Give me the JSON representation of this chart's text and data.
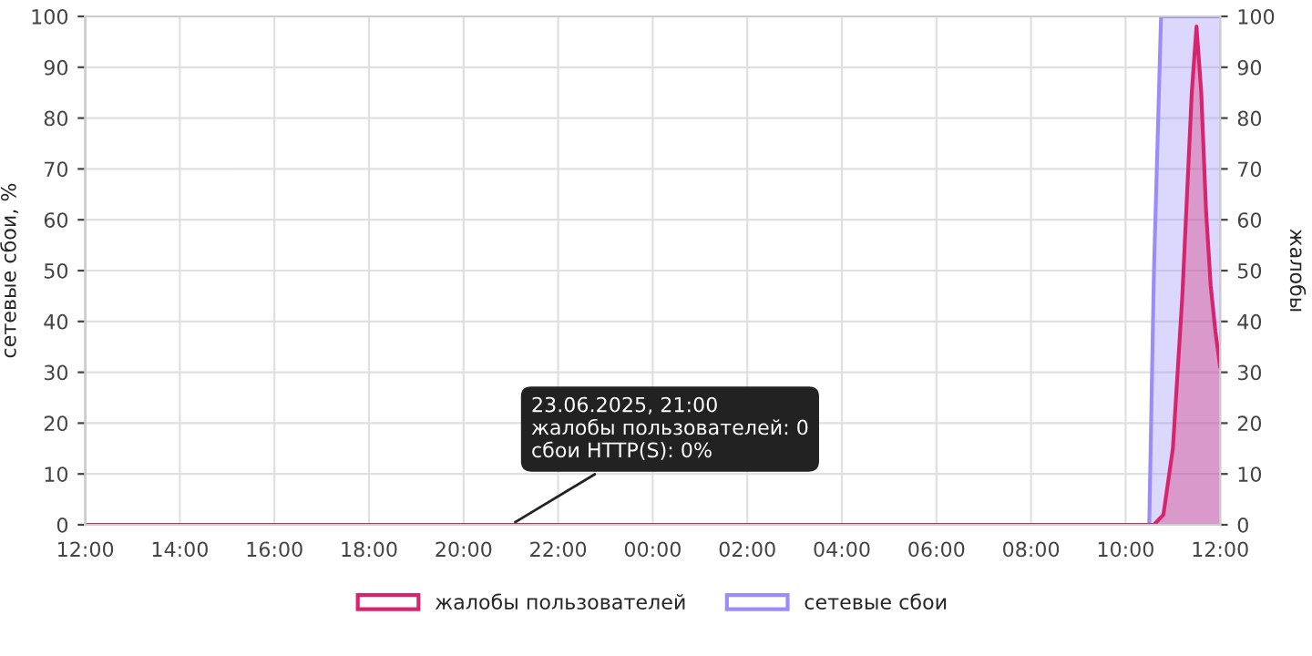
{
  "chart_data": {
    "type": "area",
    "ylabel": "сетевые сбои, %",
    "y2label": "жалобы",
    "xlim": [
      "2025-06-23T12:00",
      "2025-06-24T12:00"
    ],
    "xticks": [
      {
        "value": "2025-06-23T12:00",
        "label": "12:00"
      },
      {
        "value": "2025-06-23T14:00",
        "label": "14:00"
      },
      {
        "value": "2025-06-23T16:00",
        "label": "16:00"
      },
      {
        "value": "2025-06-23T18:00",
        "label": "18:00"
      },
      {
        "value": "2025-06-23T20:00",
        "label": "20:00"
      },
      {
        "value": "2025-06-23T22:00",
        "label": "22:00"
      },
      {
        "value": "2025-06-24T00:00",
        "label": "00:00"
      },
      {
        "value": "2025-06-24T02:00",
        "label": "02:00"
      },
      {
        "value": "2025-06-24T04:00",
        "label": "04:00"
      },
      {
        "value": "2025-06-24T06:00",
        "label": "06:00"
      },
      {
        "value": "2025-06-24T08:00",
        "label": "08:00"
      },
      {
        "value": "2025-06-24T10:00",
        "label": "10:00"
      },
      {
        "value": "2025-06-24T12:00",
        "label": "12:00"
      }
    ],
    "ylim": [
      0,
      100
    ],
    "yticks": [
      0,
      10,
      20,
      30,
      40,
      50,
      60,
      70,
      80,
      90,
      100
    ],
    "y2lim": [
      0,
      100
    ],
    "y2ticks": [
      0,
      10,
      20,
      30,
      40,
      50,
      60,
      70,
      80,
      90,
      100
    ],
    "grid": true,
    "legend": "bottom",
    "marker": "none",
    "line_style": "solid",
    "series": [
      {
        "name": "жалобы пользователей",
        "color": "#d6246e",
        "axis": "y2",
        "x": [
          "2025-06-23T12:00",
          "2025-06-24T10:36",
          "2025-06-24T10:48",
          "2025-06-24T11:00",
          "2025-06-24T11:12",
          "2025-06-24T11:24",
          "2025-06-24T11:30",
          "2025-06-24T11:36",
          "2025-06-24T11:42",
          "2025-06-24T11:48",
          "2025-06-24T11:54",
          "2025-06-24T12:00"
        ],
        "values": [
          0,
          0,
          2,
          15,
          45,
          85,
          98,
          85,
          62,
          47,
          38,
          31
        ]
      },
      {
        "name": "сетевые сбои",
        "color": "#9b8cf8",
        "axis": "y",
        "x": [
          "2025-06-23T12:00",
          "2025-06-24T10:30",
          "2025-06-24T10:36",
          "2025-06-24T10:45",
          "2025-06-24T12:00"
        ],
        "values": [
          0,
          0,
          50,
          100,
          100
        ]
      }
    ],
    "annotations": [
      {
        "text": "23.06.2025, 21:00\nжалобы пользователей: 0\nсбои HTTP(S): 0%",
        "x": "2025-06-23T21:00",
        "y": 0
      }
    ]
  }
}
